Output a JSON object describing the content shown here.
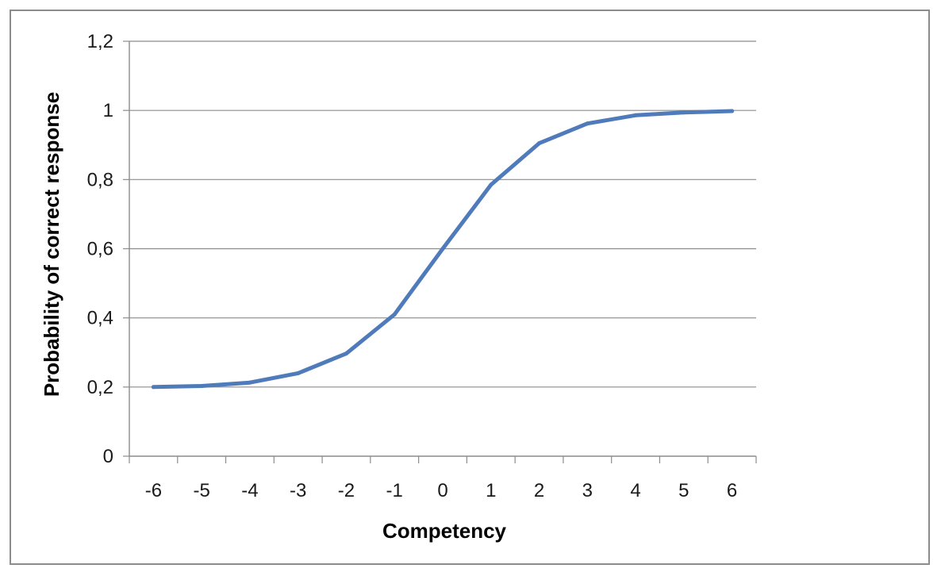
{
  "chart_data": {
    "type": "line",
    "title": "",
    "xlabel": "Competency",
    "ylabel": "Probability of correct response",
    "categories": [
      "-6",
      "-5",
      "-4",
      "-3",
      "-2",
      "-1",
      "0",
      "1",
      "2",
      "3",
      "4",
      "5",
      "6"
    ],
    "series": [
      {
        "color": "#4f7bbb",
        "values": [
          0.2,
          0.203,
          0.213,
          0.24,
          0.297,
          0.41,
          0.6,
          0.785,
          0.905,
          0.962,
          0.986,
          0.994,
          0.998
        ]
      }
    ],
    "ylim": [
      0,
      1.2
    ],
    "yticks": [
      0,
      0.2,
      0.4,
      0.6,
      0.8,
      1,
      1.2
    ],
    "ytick_labels": [
      "0",
      "0,2",
      "0,4",
      "0,6",
      "0,8",
      "1",
      "1,2"
    ],
    "grid": "horizontal",
    "legend": "none"
  }
}
